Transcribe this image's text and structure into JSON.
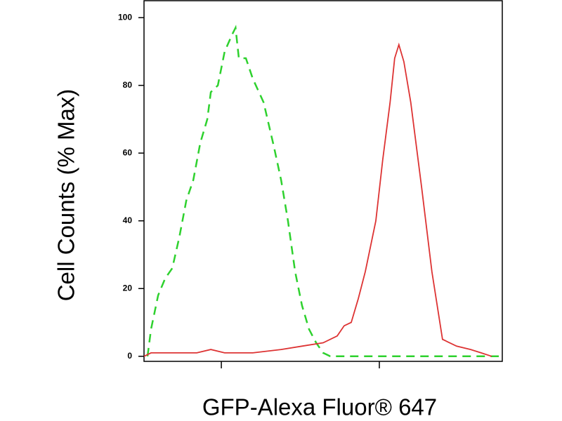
{
  "chart_data": {
    "type": "line",
    "xlabel": "GFP-Alexa Fluor® 647",
    "ylabel": "Cell Counts (% Max)",
    "xscale": "log",
    "xlim": [
      3.24,
      600
    ],
    "xticks": [
      10,
      100
    ],
    "ylim": [
      -1.5,
      105
    ],
    "yticks": [
      0,
      20,
      40,
      60,
      80,
      100
    ],
    "series": [
      {
        "color": "#2ed12e",
        "dashed": true,
        "x": [
          3.41,
          3.59,
          3.98,
          4.41,
          4.89,
          5.41,
          6.0,
          6.64,
          7.36,
          8.15,
          8.58,
          9.5,
          10.5,
          11.7,
          12.3,
          12.9,
          14.3,
          15.8,
          18.5,
          21.5,
          23.9,
          26.4,
          29.3,
          32.4,
          35.9,
          39.8,
          44.1,
          48.9,
          66.4,
          570
        ],
        "values": [
          0,
          8,
          18,
          23,
          26,
          35,
          46,
          52,
          63,
          70,
          78,
          80,
          90,
          95,
          97,
          88,
          88,
          82,
          75,
          62,
          52,
          40,
          25,
          15,
          8,
          4,
          1,
          0,
          0,
          0
        ]
      },
      {
        "color": "#dd3333",
        "dashed": false,
        "x": [
          3.24,
          3.59,
          5.14,
          6.99,
          8.58,
          10.5,
          15.8,
          23.9,
          32.4,
          44.1,
          54.1,
          59.9,
          66.4,
          73.6,
          81.5,
          95,
          105,
          117,
          125,
          133,
          143,
          158,
          185,
          215,
          251,
          308,
          378,
          441,
          514
        ],
        "values": [
          0,
          1,
          1,
          1,
          2,
          1,
          1,
          2,
          3,
          4,
          6,
          9,
          10,
          17,
          25,
          40,
          58,
          75,
          88,
          92,
          87,
          75,
          50,
          25,
          5,
          3,
          2,
          1,
          0
        ]
      }
    ]
  }
}
